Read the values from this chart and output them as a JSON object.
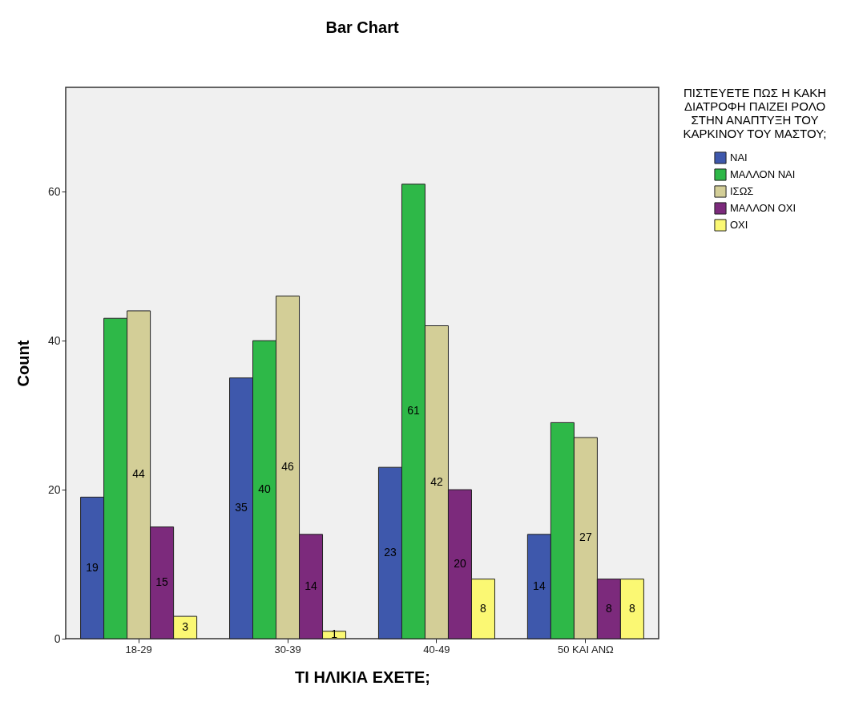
{
  "chart_data": {
    "type": "bar",
    "title": "Bar Chart",
    "xlabel": "ΤΙ ΗΛΙΚΙΑ ΕΧΕΤΕ;",
    "ylabel": "Count",
    "legend_title": "ΠΙΣΤΕΥΕΤΕ ΠΩΣ Η ΚΑΚΗ ΔΙΑΤΡΟΦΗ ΠΑΙΖΕΙ ΡΟΛΟ ΣΤΗΝ ΑΝΑΠΤΥΞΗ ΤΟΥ ΚΑΡΚΙΝΟΥ ΤΟΥ ΜΑΣΤΟΥ;",
    "categories": [
      "18-29",
      "30-39",
      "40-49",
      "50 ΚΑΙ ΑΝΩ"
    ],
    "series": [
      {
        "name": "ΝΑΙ",
        "color": "#3e58ac",
        "values": [
          19,
          35,
          23,
          14
        ],
        "value_labels": [
          "19",
          "35",
          "23",
          "14"
        ]
      },
      {
        "name": "ΜΑΛΛΟΝ ΝΑΙ",
        "color": "#2eb848",
        "values": [
          43,
          40,
          61,
          29
        ],
        "value_labels": [
          null,
          "40",
          "61",
          null
        ]
      },
      {
        "name": "ΙΣΩΣ",
        "color": "#d3ce97",
        "values": [
          44,
          46,
          42,
          27
        ],
        "value_labels": [
          "44",
          "46",
          "42",
          "27"
        ]
      },
      {
        "name": "ΜΑΛΛΟΝ ΟΧΙ",
        "color": "#7c2a7c",
        "values": [
          15,
          14,
          20,
          8
        ],
        "value_labels": [
          "15",
          "14",
          "20",
          "8"
        ]
      },
      {
        "name": "ΟΧΙ",
        "color": "#fbf873",
        "values": [
          3,
          1,
          8,
          8
        ],
        "value_labels": [
          "3",
          "1",
          "8",
          "8"
        ]
      }
    ],
    "ylim": [
      0,
      74
    ],
    "yticks": [
      0,
      20,
      40,
      60
    ],
    "grid": false,
    "legend": "right"
  }
}
